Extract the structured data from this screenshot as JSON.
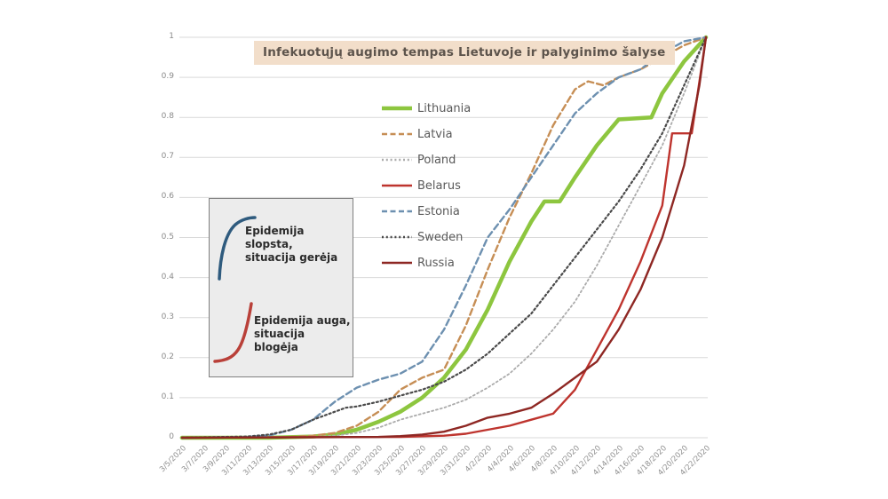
{
  "chart_data": {
    "type": "line",
    "title": "Infekuotųjų augimo tempas Lietuvoje ir palyginimo šalyse",
    "title_bg": "#F2DECA",
    "grid": "horizontal",
    "grid_color": "#D9D9D9",
    "legend_position": "inside-left-center-column",
    "ylim": [
      0,
      1
    ],
    "y_ticks": [
      "0",
      "0.1",
      "0.2",
      "0.3",
      "0.4",
      "0.5",
      "0.6",
      "0.7",
      "0.8",
      "0.9",
      "1"
    ],
    "categories": [
      "3/5/2020",
      "3/7/2020",
      "3/9/2020",
      "3/11/2020",
      "3/13/2020",
      "3/15/2020",
      "3/17/2020",
      "3/19/2020",
      "3/21/2020",
      "3/23/2020",
      "3/25/2020",
      "3/27/2020",
      "3/29/2020",
      "3/31/2020",
      "4/2/2020",
      "4/4/2020",
      "4/6/2020",
      "4/8/2020",
      "4/10/2020",
      "4/12/2020",
      "4/14/2020",
      "4/16/2020",
      "4/18/2020",
      "4/20/2020",
      "4/22/2020"
    ],
    "series": [
      {
        "name": "Lithuania",
        "color": "#8DC63F",
        "dash": "solid",
        "width": 4.5,
        "points": [
          [
            0,
            0
          ],
          [
            4,
            0
          ],
          [
            6,
            0.003
          ],
          [
            7,
            0.008
          ],
          [
            8,
            0.02
          ],
          [
            9,
            0.04
          ],
          [
            10,
            0.065
          ],
          [
            11,
            0.1
          ],
          [
            12,
            0.15
          ],
          [
            13,
            0.22
          ],
          [
            14,
            0.32
          ],
          [
            15,
            0.44
          ],
          [
            16,
            0.54
          ],
          [
            16.6,
            0.59
          ],
          [
            17.3,
            0.59
          ],
          [
            18,
            0.65
          ],
          [
            19,
            0.73
          ],
          [
            20,
            0.795
          ],
          [
            21.5,
            0.8
          ],
          [
            22,
            0.86
          ],
          [
            23,
            0.94
          ],
          [
            24,
            1
          ]
        ]
      },
      {
        "name": "Latvia",
        "color": "#C68E55",
        "dash": "dashed",
        "width": 2.4,
        "points": [
          [
            0,
            0
          ],
          [
            5,
            0.002
          ],
          [
            6,
            0.005
          ],
          [
            7,
            0.012
          ],
          [
            8,
            0.03
          ],
          [
            9,
            0.065
          ],
          [
            10,
            0.12
          ],
          [
            11,
            0.15
          ],
          [
            12,
            0.17
          ],
          [
            13,
            0.28
          ],
          [
            14,
            0.42
          ],
          [
            15,
            0.55
          ],
          [
            16,
            0.66
          ],
          [
            17,
            0.78
          ],
          [
            18,
            0.87
          ],
          [
            18.6,
            0.89
          ],
          [
            19.3,
            0.88
          ],
          [
            20,
            0.9
          ],
          [
            21,
            0.92
          ],
          [
            22,
            0.95
          ],
          [
            23,
            0.98
          ],
          [
            24,
            1
          ]
        ]
      },
      {
        "name": "Poland",
        "color": "#ABABAB",
        "dash": "dotted",
        "width": 1.8,
        "points": [
          [
            0,
            0
          ],
          [
            6,
            0.002
          ],
          [
            7,
            0.005
          ],
          [
            8,
            0.012
          ],
          [
            9,
            0.025
          ],
          [
            10,
            0.045
          ],
          [
            11,
            0.06
          ],
          [
            12,
            0.075
          ],
          [
            13,
            0.095
          ],
          [
            14,
            0.125
          ],
          [
            15,
            0.16
          ],
          [
            16,
            0.21
          ],
          [
            17,
            0.27
          ],
          [
            18,
            0.34
          ],
          [
            19,
            0.43
          ],
          [
            20,
            0.53
          ],
          [
            21,
            0.63
          ],
          [
            22,
            0.73
          ],
          [
            23,
            0.86
          ],
          [
            24,
            1
          ]
        ]
      },
      {
        "name": "Belarus",
        "color": "#BE342E",
        "dash": "solid",
        "width": 2.4,
        "points": [
          [
            0,
            0
          ],
          [
            10,
            0.002
          ],
          [
            12,
            0.005
          ],
          [
            13,
            0.01
          ],
          [
            14,
            0.02
          ],
          [
            15,
            0.03
          ],
          [
            16,
            0.045
          ],
          [
            17,
            0.06
          ],
          [
            18,
            0.12
          ],
          [
            19,
            0.22
          ],
          [
            20,
            0.32
          ],
          [
            21,
            0.44
          ],
          [
            22,
            0.58
          ],
          [
            22.45,
            0.76
          ],
          [
            23.35,
            0.76
          ],
          [
            24,
            1
          ]
        ]
      },
      {
        "name": "Estonia",
        "color": "#6D90B0",
        "dash": "dashed",
        "width": 2.4,
        "points": [
          [
            0,
            0
          ],
          [
            3,
            0.002
          ],
          [
            4,
            0.006
          ],
          [
            5,
            0.02
          ],
          [
            6,
            0.045
          ],
          [
            7,
            0.09
          ],
          [
            8,
            0.125
          ],
          [
            9,
            0.145
          ],
          [
            10,
            0.16
          ],
          [
            11,
            0.19
          ],
          [
            12,
            0.27
          ],
          [
            13,
            0.38
          ],
          [
            14,
            0.5
          ],
          [
            15,
            0.57
          ],
          [
            16,
            0.65
          ],
          [
            17,
            0.73
          ],
          [
            18,
            0.81
          ],
          [
            19,
            0.86
          ],
          [
            20,
            0.9
          ],
          [
            21,
            0.92
          ],
          [
            22,
            0.96
          ],
          [
            23,
            0.99
          ],
          [
            24,
            1
          ]
        ]
      },
      {
        "name": "Sweden",
        "color": "#4A4A4A",
        "dash": "dotted",
        "width": 2.2,
        "points": [
          [
            0,
            0
          ],
          [
            3,
            0.003
          ],
          [
            4,
            0.008
          ],
          [
            5,
            0.02
          ],
          [
            6,
            0.045
          ],
          [
            7,
            0.065
          ],
          [
            7.5,
            0.075
          ],
          [
            8,
            0.078
          ],
          [
            9,
            0.09
          ],
          [
            10,
            0.105
          ],
          [
            11,
            0.12
          ],
          [
            12,
            0.14
          ],
          [
            13,
            0.17
          ],
          [
            14,
            0.21
          ],
          [
            15,
            0.26
          ],
          [
            16,
            0.31
          ],
          [
            17,
            0.38
          ],
          [
            18,
            0.45
          ],
          [
            19,
            0.52
          ],
          [
            20,
            0.59
          ],
          [
            21,
            0.67
          ],
          [
            22,
            0.76
          ],
          [
            23,
            0.88
          ],
          [
            24,
            1
          ]
        ]
      },
      {
        "name": "Russia",
        "color": "#8E2723",
        "dash": "solid",
        "width": 2.4,
        "points": [
          [
            0,
            0
          ],
          [
            9,
            0.002
          ],
          [
            10,
            0.004
          ],
          [
            11,
            0.008
          ],
          [
            12,
            0.015
          ],
          [
            13,
            0.03
          ],
          [
            14,
            0.05
          ],
          [
            15,
            0.06
          ],
          [
            16,
            0.075
          ],
          [
            17,
            0.11
          ],
          [
            18,
            0.15
          ],
          [
            19,
            0.19
          ],
          [
            20,
            0.27
          ],
          [
            21,
            0.37
          ],
          [
            22,
            0.5
          ],
          [
            23,
            0.68
          ],
          [
            23.7,
            0.88
          ],
          [
            24,
            1
          ]
        ]
      }
    ]
  },
  "annotation_box": {
    "improving": {
      "text": "Epidemija\nslopsta,\nsituacija gerėja",
      "curve_color": "#2F5B7E"
    },
    "worsening": {
      "text": "Epidemija auga,\nsituacija blogėja",
      "curve_color": "#B94039"
    }
  }
}
